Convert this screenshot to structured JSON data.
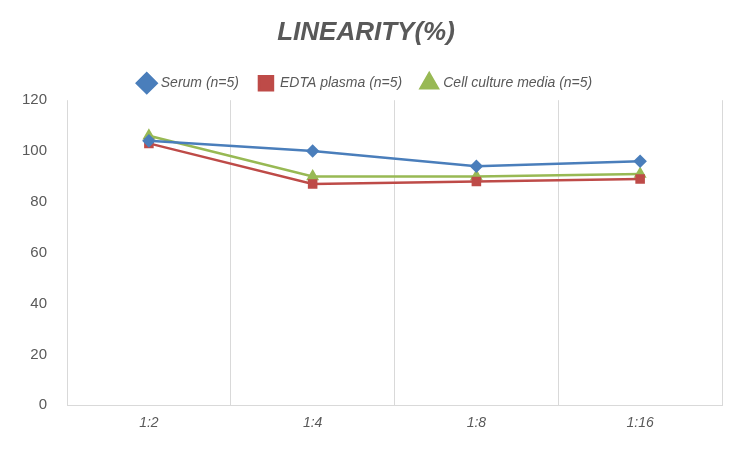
{
  "chart_data": {
    "type": "line",
    "title": "LINEARITY(%)",
    "categories": [
      "1:2",
      "1:4",
      "1:8",
      "1:16"
    ],
    "series": [
      {
        "name": "Serum (n=5)",
        "color": "#4a7ebb",
        "marker": "diamond",
        "values": [
          104,
          100,
          94,
          96
        ]
      },
      {
        "name": "EDTA plasma (n=5)",
        "color": "#be4b48",
        "marker": "square",
        "values": [
          103,
          87,
          88,
          89
        ]
      },
      {
        "name": "Cell culture media (n=5)",
        "color": "#98b954",
        "marker": "triangle",
        "values": [
          106,
          90,
          90,
          91
        ]
      }
    ],
    "ylim": [
      0,
      120
    ],
    "yticks": [
      0,
      20,
      40,
      60,
      80,
      100,
      120
    ],
    "grid": true,
    "legend": "top"
  }
}
